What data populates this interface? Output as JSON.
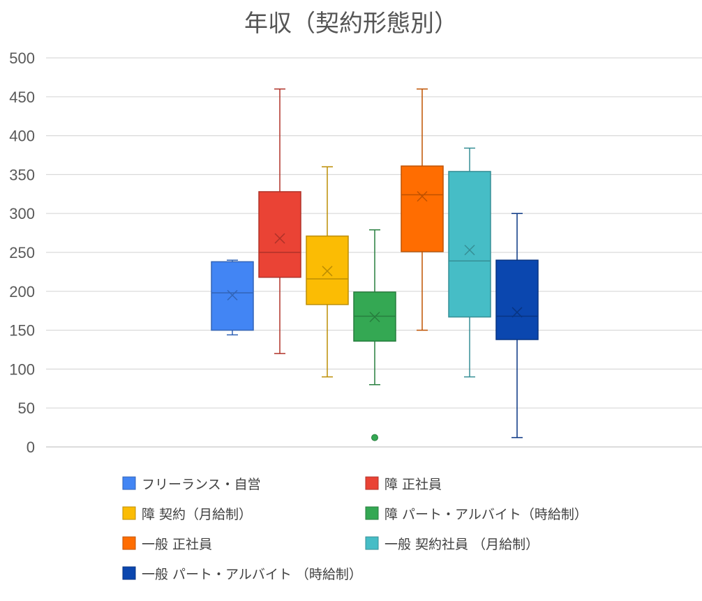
{
  "chart_data": {
    "type": "boxplot",
    "title": "年収（契約形態別）",
    "xlabel": "",
    "ylabel": "",
    "ylim": [
      0,
      500
    ],
    "yticks": [
      0,
      50,
      100,
      150,
      200,
      250,
      300,
      350,
      400,
      450,
      500
    ],
    "grid": true,
    "legend_position": "bottom",
    "series": [
      {
        "name": "フリーランス・自営",
        "color": "#4285F4",
        "min": 144,
        "q1": 150,
        "median": 198,
        "q3": 238,
        "max": 240,
        "mean": 195,
        "outliers": []
      },
      {
        "name": "障 正社員",
        "color": "#EA4335",
        "min": 120,
        "q1": 218,
        "median": 250,
        "q3": 328,
        "max": 460,
        "mean": 268,
        "outliers": []
      },
      {
        "name": "障 契約（月給制）",
        "color": "#FBBC04",
        "min": 90,
        "q1": 183,
        "median": 216,
        "q3": 271,
        "max": 360,
        "mean": 226,
        "outliers": []
      },
      {
        "name": "障 パート・アルバイト（時給制）",
        "color": "#34A853",
        "min": 80,
        "q1": 136,
        "median": 168,
        "q3": 199,
        "max": 279,
        "mean": 167,
        "outliers": [
          12
        ]
      },
      {
        "name": "一般 正社員",
        "color": "#FF6D01",
        "min": 150,
        "q1": 251,
        "median": 324,
        "q3": 361,
        "max": 460,
        "mean": 322,
        "outliers": []
      },
      {
        "name": "一般 契約社員 （月給制）",
        "color": "#46BDC6",
        "min": 90,
        "q1": 167,
        "median": 239,
        "q3": 354,
        "max": 384,
        "mean": 253,
        "outliers": []
      },
      {
        "name": "一般 パート・アルバイト （時給制）",
        "color": "#0B47AF",
        "min": 12,
        "q1": 138,
        "median": 168,
        "q3": 240,
        "max": 300,
        "mean": 173,
        "outliers": []
      }
    ]
  }
}
